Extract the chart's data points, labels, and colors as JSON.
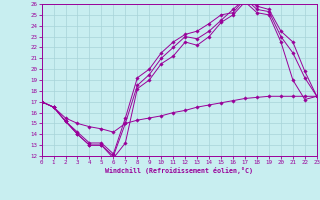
{
  "xlabel": "Windchill (Refroidissement éolien,°C)",
  "xlim": [
    0,
    23
  ],
  "ylim": [
    12,
    26
  ],
  "xticks": [
    0,
    1,
    2,
    3,
    4,
    5,
    6,
    7,
    8,
    9,
    10,
    11,
    12,
    13,
    14,
    15,
    16,
    17,
    18,
    19,
    20,
    21,
    22,
    23
  ],
  "yticks": [
    12,
    13,
    14,
    15,
    16,
    17,
    18,
    19,
    20,
    21,
    22,
    23,
    24,
    25,
    26
  ],
  "bg_color": "#c8eef0",
  "line_color": "#990099",
  "grid_color": "#a8d4d8",
  "lines": [
    {
      "x": [
        0,
        1,
        2,
        3,
        4,
        5,
        6,
        7,
        8,
        9,
        10,
        11,
        12,
        13,
        14,
        15,
        16,
        17,
        18,
        19,
        20,
        21,
        22,
        23
      ],
      "y": [
        17.0,
        16.5,
        15.2,
        14.0,
        13.0,
        13.0,
        11.8,
        13.2,
        18.2,
        19.0,
        20.5,
        21.2,
        22.5,
        22.2,
        23.0,
        24.3,
        25.0,
        26.2,
        25.2,
        25.0,
        22.5,
        19.0,
        17.2,
        17.5
      ]
    },
    {
      "x": [
        0,
        1,
        2,
        3,
        4,
        5,
        6,
        7,
        8,
        9,
        10,
        11,
        12,
        13,
        14,
        15,
        16,
        17,
        18,
        19,
        20,
        21,
        22,
        23
      ],
      "y": [
        17.0,
        16.5,
        15.2,
        14.0,
        13.0,
        13.0,
        12.0,
        15.0,
        18.5,
        19.5,
        21.0,
        22.0,
        23.0,
        22.8,
        23.5,
        24.5,
        25.5,
        26.5,
        25.5,
        25.3,
        23.0,
        21.5,
        19.2,
        17.5
      ]
    },
    {
      "x": [
        0,
        1,
        2,
        3,
        4,
        5,
        6,
        7,
        8,
        9,
        10,
        11,
        12,
        13,
        14,
        15,
        16,
        17,
        18,
        19,
        20,
        21,
        22,
        23
      ],
      "y": [
        17.0,
        16.5,
        15.2,
        14.2,
        13.2,
        13.2,
        12.2,
        15.5,
        19.2,
        20.0,
        21.5,
        22.5,
        23.2,
        23.5,
        24.2,
        25.0,
        25.2,
        26.5,
        25.8,
        25.5,
        23.5,
        22.5,
        19.8,
        17.5
      ]
    },
    {
      "x": [
        0,
        1,
        2,
        3,
        4,
        5,
        6,
        7,
        8,
        9,
        10,
        11,
        12,
        13,
        14,
        15,
        16,
        17,
        18,
        19,
        20,
        21,
        22,
        23
      ],
      "y": [
        17.0,
        16.5,
        15.5,
        15.0,
        14.7,
        14.5,
        14.2,
        15.0,
        15.3,
        15.5,
        15.7,
        16.0,
        16.2,
        16.5,
        16.7,
        16.9,
        17.1,
        17.3,
        17.4,
        17.5,
        17.5,
        17.5,
        17.5,
        17.5
      ]
    }
  ]
}
